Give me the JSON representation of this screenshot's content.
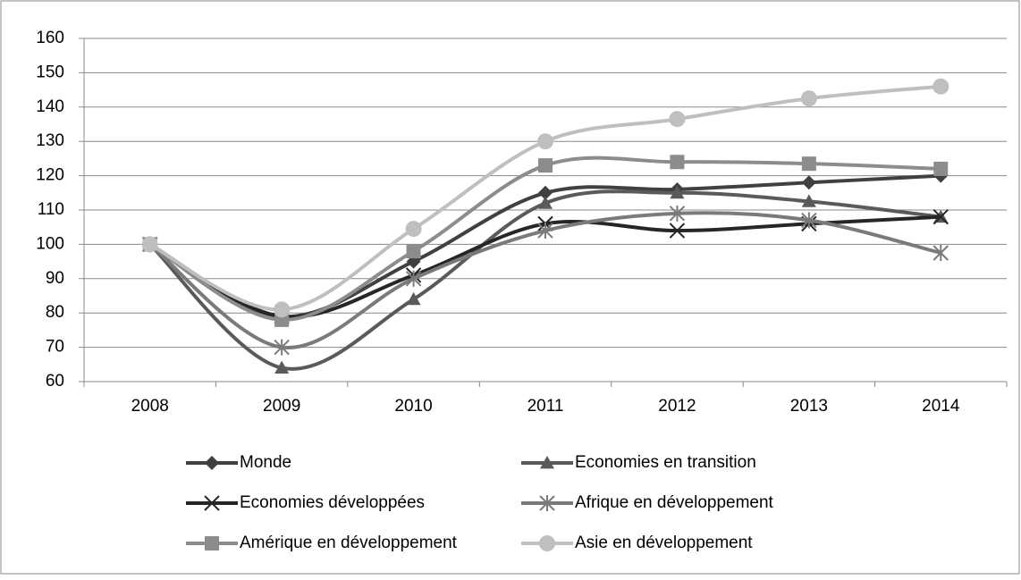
{
  "chart_data": {
    "type": "line",
    "smooth": true,
    "categories": [
      "2008",
      "2009",
      "2010",
      "2011",
      "2012",
      "2013",
      "2014"
    ],
    "series": [
      {
        "name": "Monde",
        "color": "#404040",
        "marker": "diamond",
        "values": [
          100,
          79,
          95,
          115,
          116,
          118,
          120
        ]
      },
      {
        "name": "Economies en transition",
        "color": "#5a5a5a",
        "marker": "triangle",
        "values": [
          100,
          64,
          84,
          112,
          115,
          112.5,
          108
        ]
      },
      {
        "name": "Economies développées",
        "color": "#262626",
        "marker": "x",
        "values": [
          100,
          79,
          91,
          106,
          104,
          106,
          108
        ]
      },
      {
        "name": "Afrique en développement",
        "color": "#7a7a7a",
        "marker": "asterisk",
        "values": [
          100,
          70,
          90,
          104,
          109,
          107,
          97.5
        ]
      },
      {
        "name": "Amérique en développement",
        "color": "#8c8c8c",
        "marker": "square",
        "values": [
          100,
          78,
          98,
          123,
          124,
          123.5,
          122
        ]
      },
      {
        "name": "Asie en développement",
        "color": "#bfbfbf",
        "marker": "circle",
        "values": [
          100,
          81,
          104.5,
          130,
          136.5,
          142.5,
          146
        ]
      }
    ],
    "ylim": [
      60,
      160
    ],
    "yticks": [
      60,
      70,
      80,
      90,
      100,
      110,
      120,
      130,
      140,
      150,
      160
    ],
    "grid": true
  }
}
